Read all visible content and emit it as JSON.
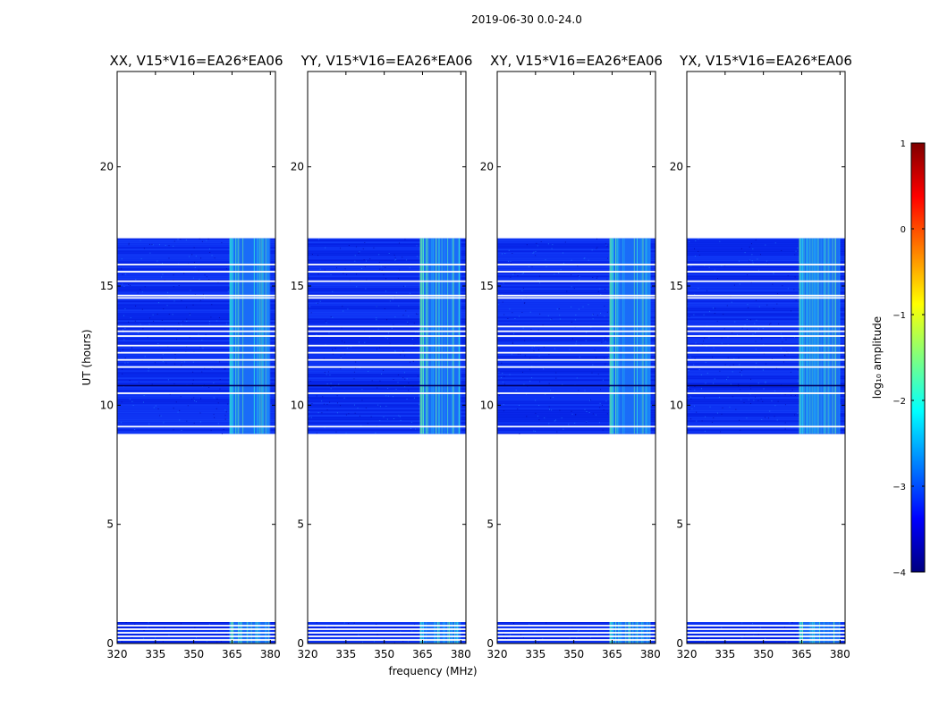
{
  "suptitle": "2019-06-30 0.0-24.0",
  "xlabel": "frequency (MHz)",
  "ylabel": "UT (hours)",
  "chart_data": [
    {
      "type": "heatmap",
      "title": "XX, V15*V16=EA26*EA06",
      "xlim": [
        320,
        382
      ],
      "ylim": [
        0,
        24
      ],
      "xticks": [
        320,
        335,
        350,
        365,
        380
      ],
      "yticks": [
        0,
        5,
        10,
        15,
        20
      ],
      "data_spans_ut": [
        [
          0.0,
          0.9
        ],
        [
          8.8,
          17.0
        ]
      ],
      "flagged_rows_ut": [
        0.15,
        0.3,
        0.45,
        0.6,
        0.75,
        9.1,
        10.5,
        11.6,
        11.9,
        12.2,
        12.5,
        12.9,
        13.1,
        13.3,
        14.5,
        14.6,
        15.2,
        15.6,
        15.9
      ],
      "rfi_band_mhz": [
        364,
        380
      ],
      "note": "log10 amplitude dynamic spectrum"
    },
    {
      "type": "heatmap",
      "title": "YY, V15*V16=EA26*EA06",
      "xlim": [
        320,
        382
      ],
      "ylim": [
        0,
        24
      ],
      "xticks": [
        320,
        335,
        350,
        365,
        380
      ],
      "yticks": [
        0,
        5,
        10,
        15,
        20
      ],
      "data_spans_ut": [
        [
          0.0,
          0.9
        ],
        [
          8.8,
          17.0
        ]
      ],
      "flagged_rows_ut": [
        0.15,
        0.3,
        0.45,
        0.6,
        0.75,
        9.1,
        10.5,
        11.6,
        11.9,
        12.2,
        12.5,
        12.9,
        13.1,
        13.3,
        14.5,
        14.6,
        15.2,
        15.6,
        15.9
      ],
      "rfi_band_mhz": [
        364,
        380
      ],
      "note": "log10 amplitude dynamic spectrum"
    },
    {
      "type": "heatmap",
      "title": "XY, V15*V16=EA26*EA06",
      "xlim": [
        320,
        382
      ],
      "ylim": [
        0,
        24
      ],
      "xticks": [
        320,
        335,
        350,
        365,
        380
      ],
      "yticks": [
        0,
        5,
        10,
        15,
        20
      ],
      "data_spans_ut": [
        [
          0.0,
          0.9
        ],
        [
          8.8,
          17.0
        ]
      ],
      "flagged_rows_ut": [
        0.15,
        0.3,
        0.45,
        0.6,
        0.75,
        9.1,
        10.5,
        11.6,
        11.9,
        12.2,
        12.5,
        12.9,
        13.1,
        13.3,
        14.5,
        14.6,
        15.2,
        15.6,
        15.9
      ],
      "rfi_band_mhz": [
        364,
        380
      ],
      "note": "log10 amplitude dynamic spectrum"
    },
    {
      "type": "heatmap",
      "title": "YX, V15*V16=EA26*EA06",
      "xlim": [
        320,
        382
      ],
      "ylim": [
        0,
        24
      ],
      "xticks": [
        320,
        335,
        350,
        365,
        380
      ],
      "yticks": [
        0,
        5,
        10,
        15,
        20
      ],
      "data_spans_ut": [
        [
          0.0,
          0.9
        ],
        [
          8.8,
          17.0
        ]
      ],
      "flagged_rows_ut": [
        0.15,
        0.3,
        0.45,
        0.6,
        0.75,
        9.1,
        10.5,
        11.6,
        11.9,
        12.2,
        12.5,
        12.9,
        13.1,
        13.3,
        14.5,
        14.6,
        15.2,
        15.6,
        15.9
      ],
      "rfi_band_mhz": [
        364,
        380
      ],
      "note": "log10 amplitude dynamic spectrum"
    }
  ],
  "colorbar": {
    "label": "log₁₀ amplitude",
    "min": -4,
    "max": 1,
    "ticks": [
      1,
      0,
      -1,
      -2,
      -3,
      -4
    ],
    "tick_labels": [
      "1",
      "0",
      "−1",
      "−2",
      "−3",
      "−4"
    ],
    "colormap": [
      "#00007f",
      "#0000ff",
      "#007fff",
      "#00ffff",
      "#7fff7f",
      "#ffff00",
      "#ff7f00",
      "#ff0000",
      "#7f0000"
    ]
  }
}
